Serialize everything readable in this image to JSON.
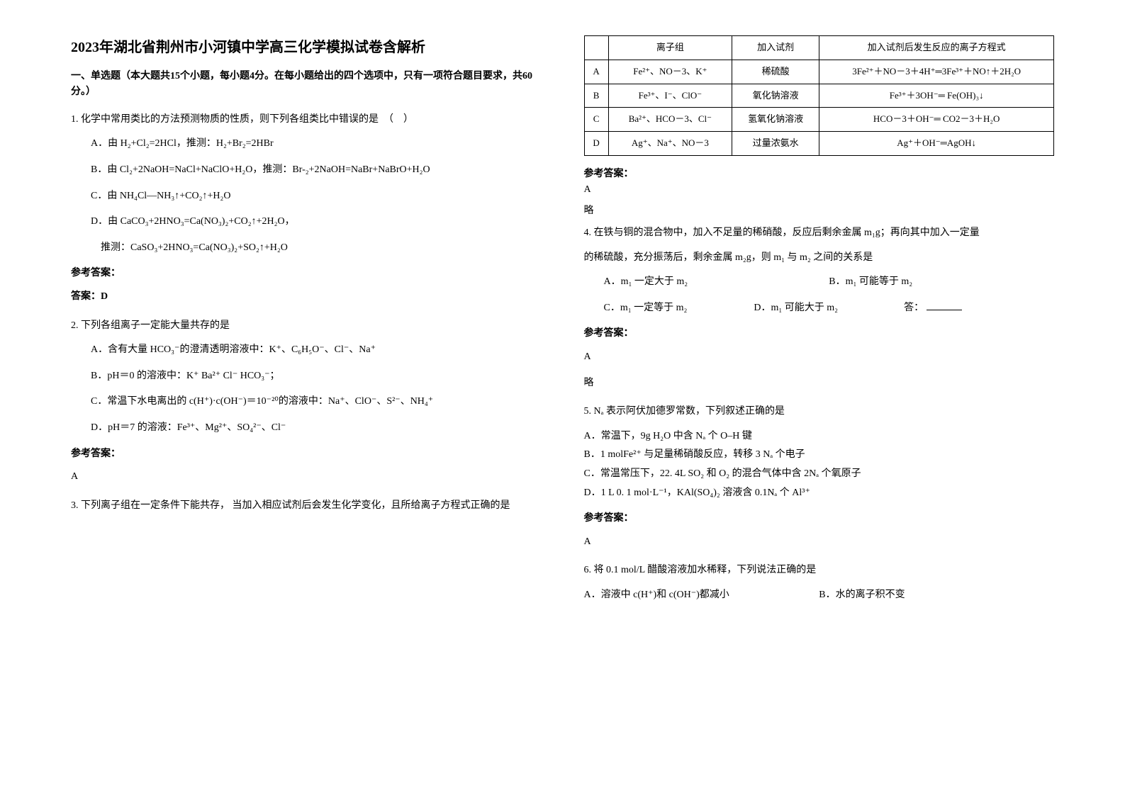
{
  "title": "2023年湖北省荆州市小河镇中学高三化学模拟试卷含解析",
  "section_intro": "一、单选题（本大题共15个小题，每小题4分。在每小题给出的四个选项中，只有一项符合题目要求，共60分。）",
  "q1": {
    "stem": "1. 化学中常用类比的方法预测物质的性质，则下列各组类比中错误的是　（　）",
    "A": "A．由 H₂+Cl₂=2HCl，推测：H₂+Br₂=2HBr",
    "B": "B．由 Cl₂+2NaOH=NaCl+NaClO+H₂O，推测：Br-₂+2NaOH=NaBr+NaBrO+H₂O",
    "C": "C．由 NH₄Cl—NH₃↑+CO₂↑+H₂O",
    "D": "D．由 CaCO₃+2HNO₃=Ca(NO₃)₂+CO₂↑+2H₂O，",
    "D2": "推测：CaSO₃+2HNO₃=Ca(NO₃)₂+SO₂↑+H₂O",
    "ans_label": "参考答案：",
    "ans": "答案：D"
  },
  "q2": {
    "stem": "2. 下列各组离子一定能大量共存的是",
    "A": "A．含有大量 HCO₃⁻的澄清透明溶液中：K⁺、C₆H₅O⁻、Cl⁻、Na⁺",
    "B": "B．pH＝0 的溶液中：K⁺ Ba²⁺ Cl⁻ HCO₃⁻；",
    "C": "C．常温下水电离出的 c(H⁺)·c(OH⁻)＝10⁻²⁰的溶液中：Na⁺、ClO⁻、S²⁻、NH₄⁺",
    "D": "D．pH＝7 的溶液：Fe³⁺、Mg²⁺、SO₄²⁻、Cl⁻",
    "ans_label": "参考答案：",
    "ans": "A"
  },
  "q3": {
    "stem": "3. 下列离子组在一定条件下能共存， 当加入相应试剂后会发生化学变化，且所给离子方程式正确的是"
  },
  "table": {
    "headers": [
      "",
      "离子组",
      "加入试剂",
      "加入试剂后发生反应的离子方程式"
    ],
    "rows": [
      [
        "A",
        "Fe²⁺、NO－3、K⁺",
        "稀硫酸",
        "3Fe²⁺＋NO－3＋4H⁺═3Fe³⁺＋NO↑＋2H₂O"
      ],
      [
        "B",
        "Fe³⁺、I⁻、ClO⁻",
        "氧化钠溶液",
        "Fe³⁺＋3OH⁻═ Fe(OH)₃↓"
      ],
      [
        "C",
        "Ba²⁺、HCO－3、Cl⁻",
        "氢氧化钠溶液",
        "HCO－3＋OH⁻═ CO2－3＋H₂O"
      ],
      [
        "D",
        "Ag⁺、Na⁺、NO－3",
        "过量浓氨水",
        "Ag⁺＋OH⁻═AgOH↓"
      ]
    ]
  },
  "q3ans": {
    "label": "参考答案：",
    "ans": "A",
    "note": "略"
  },
  "q4": {
    "stem1": "4. 在铁与铜的混合物中，加入不足量的稀硝酸，反应后剩余金属 m₁g；再向其中加入一定量",
    "stem2": "的稀硫酸，充分振荡后，剩余金属 m₂g，则 m₁ 与 m₂ 之间的关系是",
    "A": "A．m₁ 一定大于 m₂",
    "B": "B．m₁ 可能等于 m₂",
    "C": "C．m₁ 一定等于 m₂",
    "D": "D．m₁ 可能大于 m₂",
    "answer_prompt": "答：",
    "ans_label": "参考答案：",
    "ans": "A",
    "note": "略"
  },
  "q5": {
    "stem": "5. Nₐ 表示阿伏加德罗常数，下列叙述正确的是",
    "A": "A．常温下，9g H₂O 中含 Nₐ 个 O–H 键",
    "B": "B．1 molFe²⁺ 与足量稀硝酸反应，转移 3 Nₐ 个电子",
    "C": "C．常温常压下，22. 4L SO₂ 和 O₂ 的混合气体中含 2Nₐ 个氧原子",
    "D": "D．1 L 0. 1 mol·L⁻¹，KAl(SO₄)₂ 溶液含 0.1Nₐ 个 Al³⁺",
    "ans_label": "参考答案：",
    "ans": "A"
  },
  "q6": {
    "stem": "6. 将 0.1 mol/L 醋酸溶液加水稀释，下列说法正确的是",
    "A": "A．溶液中 c(H⁺)和 c(OH⁻)都减小",
    "B": "B．水的离子积不变"
  }
}
